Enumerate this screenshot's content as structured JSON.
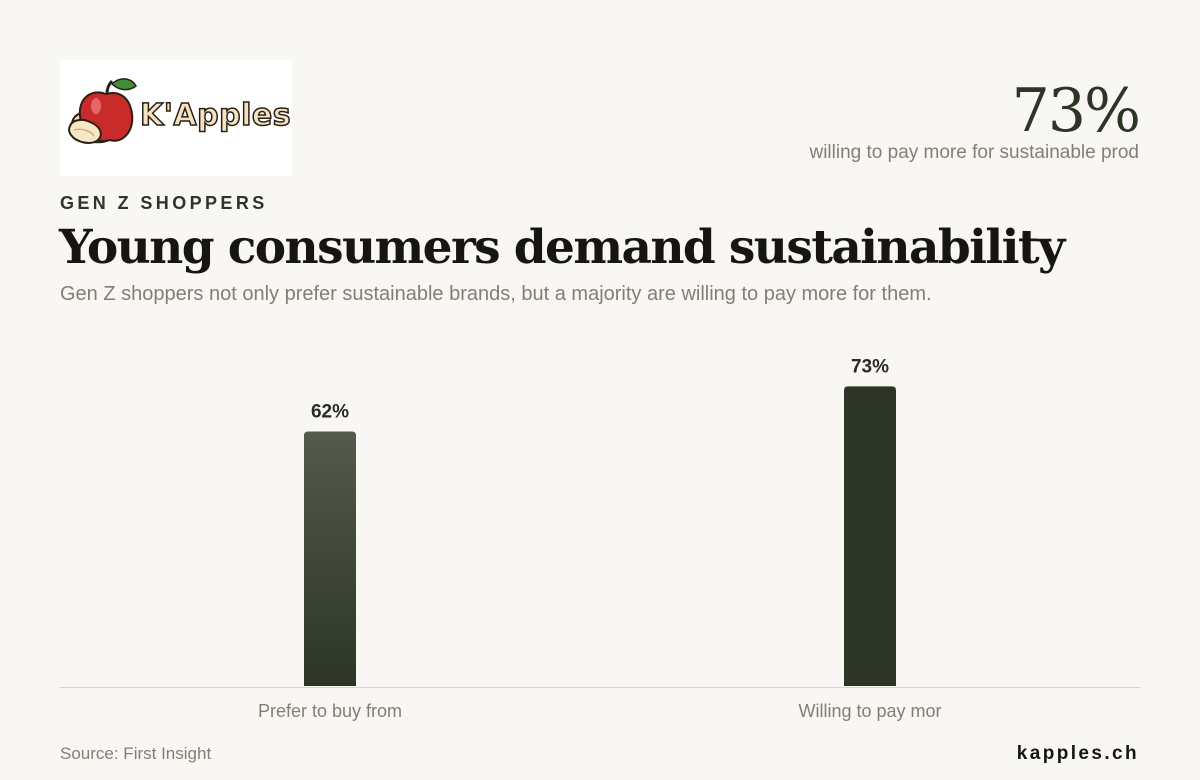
{
  "brand": {
    "logo_text": "K'Apples",
    "site": "kapples.ch"
  },
  "kpi": {
    "value": "73%",
    "label": "willing to pay more for sustainable prod"
  },
  "header": {
    "kicker": "GEN Z SHOPPERS",
    "title": "Young consumers demand sustainability",
    "subtitle": "Gen Z shoppers not only prefer sustainable brands, but a majority are willing to pay more for them."
  },
  "footer": {
    "source": "Source: First Insight"
  },
  "colors": {
    "bar_dark": "#2c3526",
    "bar_light": "#545a4c",
    "axis": "#d9d4cc",
    "apple_red": "#c92a2a",
    "leaf_green": "#3f8f3a"
  },
  "chart_data": {
    "type": "bar",
    "categories": [
      "Prefer to buy from",
      "Willing to pay mor"
    ],
    "values": [
      62,
      73
    ],
    "value_labels": [
      "62%",
      "73%"
    ],
    "ylim": [
      0,
      100
    ],
    "grid": false
  }
}
